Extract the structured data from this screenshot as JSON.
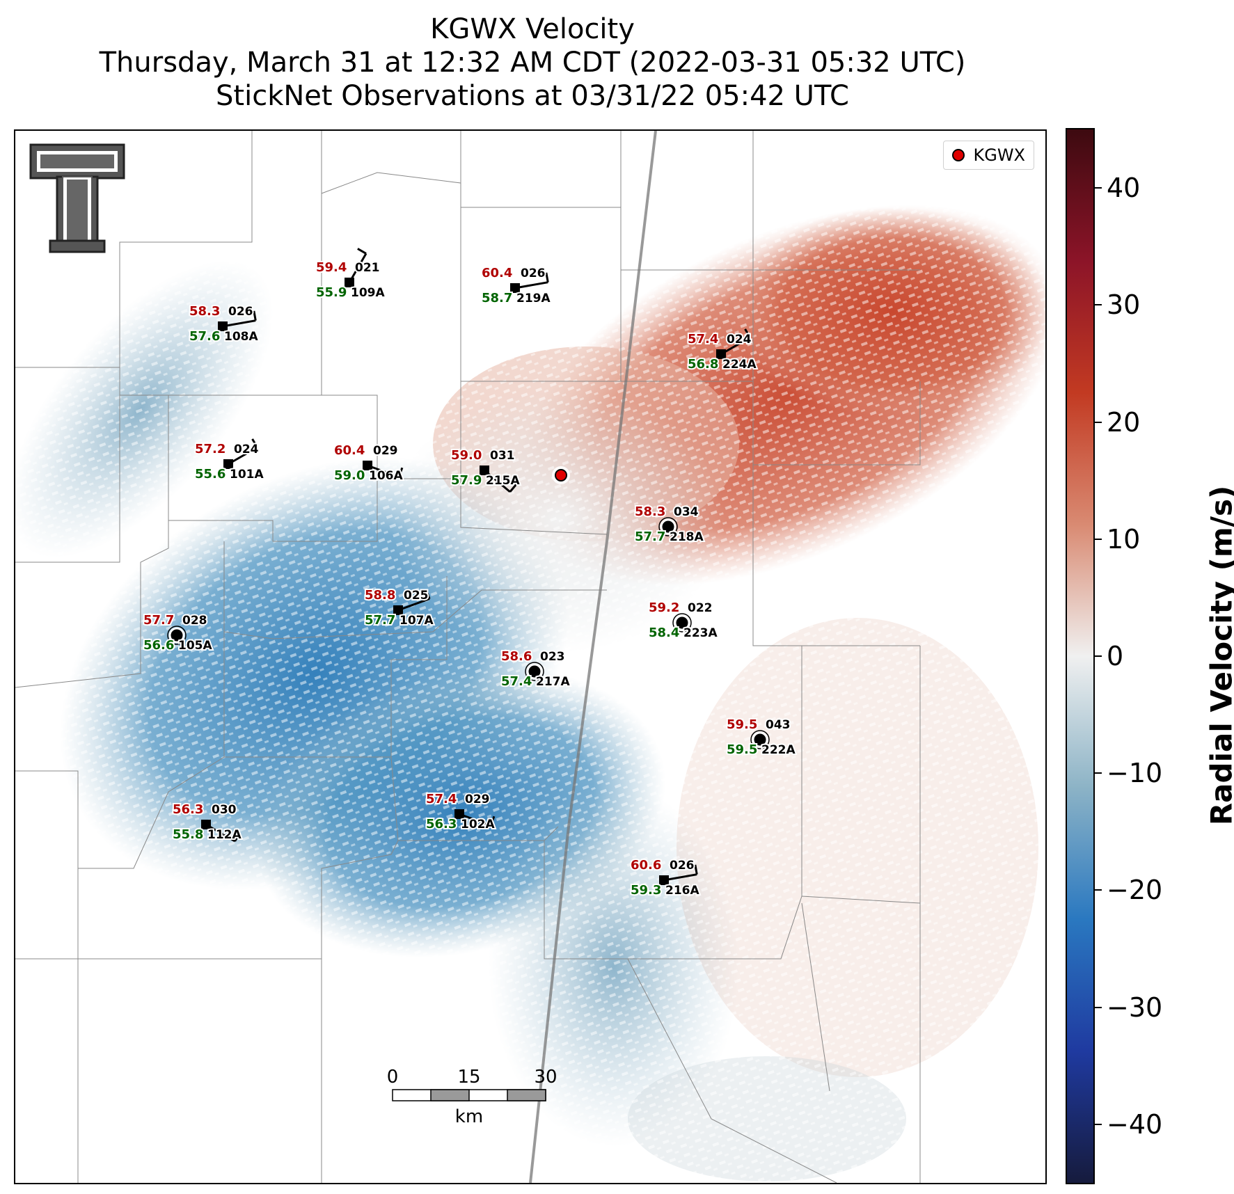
{
  "title": {
    "line1": "KGWX Velocity",
    "line2": "Thursday, March 31 at 12:32 AM CDT (2022-03-31 05:32 UTC)",
    "line3": "StickNet Observations at 03/31/22 05:42 UTC"
  },
  "legend": {
    "radar_label": "KGWX",
    "marker_color": "#e00000"
  },
  "logo": {
    "icon": "texas-tech-double-t-logo"
  },
  "colorbar": {
    "label": "Radial Velocity (m/s)",
    "range": [
      -45,
      45
    ],
    "ticks": [
      {
        "value": 40,
        "label": "40"
      },
      {
        "value": 30,
        "label": "30"
      },
      {
        "value": 20,
        "label": "20"
      },
      {
        "value": 10,
        "label": "10"
      },
      {
        "value": 0,
        "label": "0"
      },
      {
        "value": -10,
        "label": "−10"
      },
      {
        "value": -20,
        "label": "−20"
      },
      {
        "value": -30,
        "label": "−30"
      },
      {
        "value": -40,
        "label": "−40"
      }
    ],
    "colors": [
      "#161b3d",
      "#1f3aa0",
      "#2a78c0",
      "#8cb3c6",
      "#f0f0f0",
      "#d98a72",
      "#c23a22",
      "#8c1428",
      "#3d0a10"
    ]
  },
  "scale_bar": {
    "ticks": [
      "0",
      "15",
      "30"
    ],
    "unit": "km"
  },
  "stations": [
    {
      "id": "109A",
      "temp": "59.4",
      "dew": "55.9",
      "wind": "021",
      "marker": "square"
    },
    {
      "id": "219A",
      "temp": "60.4",
      "dew": "58.7",
      "wind": "026",
      "marker": "square"
    },
    {
      "id": "108A",
      "temp": "58.3",
      "dew": "57.6",
      "wind": "026",
      "marker": "square"
    },
    {
      "id": "224A",
      "temp": "57.4",
      "dew": "56.8",
      "wind": "024",
      "marker": "square"
    },
    {
      "id": "101A",
      "temp": "57.2",
      "dew": "55.6",
      "wind": "024",
      "marker": "square"
    },
    {
      "id": "106A",
      "temp": "60.4",
      "dew": "59.0",
      "wind": "029",
      "marker": "square"
    },
    {
      "id": "215A",
      "temp": "59.0",
      "dew": "57.9",
      "wind": "031",
      "marker": "square"
    },
    {
      "id": "218A",
      "temp": "58.3",
      "dew": "57.7",
      "wind": "034",
      "marker": "circle"
    },
    {
      "id": "107A",
      "temp": "58.8",
      "dew": "57.7",
      "wind": "025",
      "marker": "square"
    },
    {
      "id": "223A",
      "temp": "59.2",
      "dew": "58.4",
      "wind": "022",
      "marker": "circle"
    },
    {
      "id": "105A",
      "temp": "57.7",
      "dew": "56.6",
      "wind": "028",
      "marker": "circle"
    },
    {
      "id": "217A",
      "temp": "58.6",
      "dew": "57.4",
      "wind": "023",
      "marker": "circle"
    },
    {
      "id": "222A",
      "temp": "59.5",
      "dew": "59.5",
      "wind": "043",
      "marker": "circle"
    },
    {
      "id": "102A",
      "temp": "57.4",
      "dew": "56.3",
      "wind": "029",
      "marker": "square"
    },
    {
      "id": "112A",
      "temp": "56.3",
      "dew": "55.8",
      "wind": "030",
      "marker": "square"
    },
    {
      "id": "216A",
      "temp": "60.6",
      "dew": "59.3",
      "wind": "026",
      "marker": "square"
    }
  ]
}
